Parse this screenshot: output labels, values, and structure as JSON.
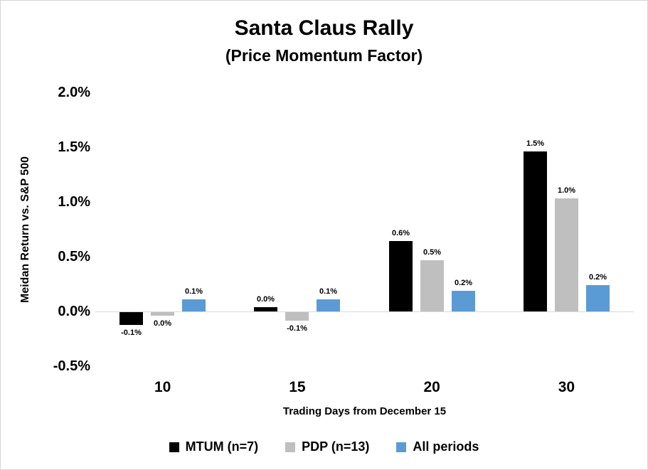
{
  "chart_data": {
    "type": "bar",
    "title": "Santa Claus Rally",
    "subtitle": "(Price Momentum Factor)",
    "ylabel": "Meidan Return vs. S&P 500",
    "xlabel": "Trading Days from December 15",
    "categories": [
      "10",
      "15",
      "20",
      "30"
    ],
    "series": [
      {
        "name": "MTUM (n=7)",
        "color": "#000000",
        "values": [
          -0.12,
          0.04,
          0.64,
          1.46
        ],
        "labels": [
          "-0.1%",
          "0.0%",
          "0.6%",
          "1.5%"
        ]
      },
      {
        "name": "PDP (n=13)",
        "color": "#bfbfbf",
        "values": [
          -0.03,
          -0.08,
          0.47,
          1.03
        ],
        "labels": [
          "0.0%",
          "-0.1%",
          "0.5%",
          "1.0%"
        ]
      },
      {
        "name": "All periods",
        "color": "#5b9bd5",
        "values": [
          0.11,
          0.11,
          0.19,
          0.24
        ],
        "labels": [
          "0.1%",
          "0.1%",
          "0.2%",
          "0.2%"
        ]
      }
    ],
    "y_axis": {
      "min": -0.5,
      "max": 2.0,
      "step": 0.5,
      "tick_labels": [
        "2.0%",
        "1.5%",
        "1.0%",
        "0.5%",
        "0.0%",
        "-0.5%"
      ]
    },
    "legend_position": "bottom",
    "grid": false,
    "axis_line_color": "#d9d9d9",
    "background_color": "#ffffff",
    "border_color": "#d6d6d6"
  }
}
